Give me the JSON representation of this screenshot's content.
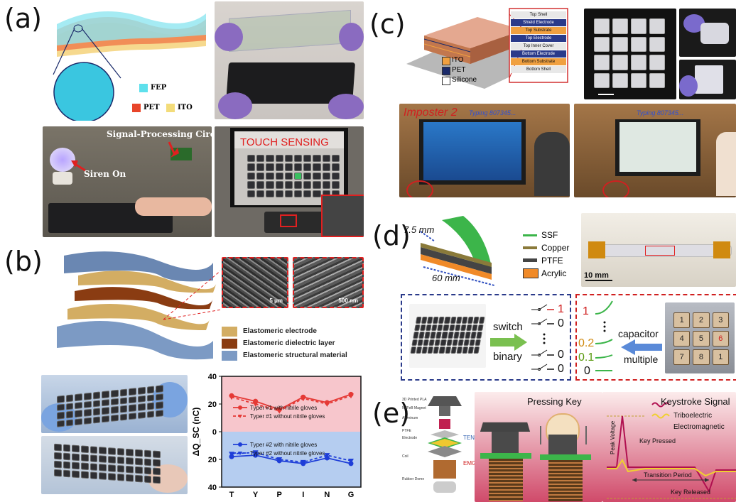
{
  "labels": {
    "a": "(a)",
    "b": "(b)",
    "c": "(c)",
    "d": "(d)",
    "e": "(e)"
  },
  "panel_a": {
    "legend": {
      "fep": "FEP",
      "pet": "PET",
      "ito": "ITO"
    },
    "signal_circuit": "Signal-Processing Circuit",
    "siren": "Siren On",
    "touch_sensing": "TOUCH SENSING"
  },
  "panel_b": {
    "scale1": "5 μm",
    "scale2": "500 nm",
    "legend": [
      "Elastomeric electrode",
      "Elastomeric dielectric layer",
      "Elastomeric structural material"
    ],
    "legend_colors": [
      "#d3ad63",
      "#8a3c12",
      "#7c9ac4"
    ],
    "chart_legend": [
      "Typer #1 with nitrile gloves",
      "Typer #1 without nitrile gloves",
      "Typer #2 with nitrile gloves",
      "Typer #2 without nitrile gloves"
    ]
  },
  "chart_data": {
    "type": "line",
    "categories": [
      "T",
      "Y",
      "P",
      "I",
      "N",
      "G"
    ],
    "ylabel": "ΔQ_SC (nC)",
    "yticks": [
      "40",
      "20",
      "0",
      "20",
      "40"
    ],
    "series": [
      {
        "name": "Typer #1 with nitrile gloves",
        "values": [
          26,
          22,
          16,
          25,
          21,
          27
        ],
        "color": "#e53935",
        "dashed": false
      },
      {
        "name": "Typer #1 without nitrile gloves",
        "values": [
          25,
          20,
          15,
          24,
          20,
          26
        ],
        "color": "#e53935",
        "dashed": true
      },
      {
        "name": "Typer #2 with nitrile gloves",
        "values": [
          -18,
          -17,
          -21,
          -23,
          -19,
          -23
        ],
        "color": "#1e3ed8",
        "dashed": false
      },
      {
        "name": "Typer #2 without nitrile gloves",
        "values": [
          -16,
          -15,
          -20,
          -22,
          -17,
          -21
        ],
        "color": "#1e3ed8",
        "dashed": true
      }
    ],
    "ylim": [
      -40,
      40
    ]
  },
  "panel_c": {
    "legend": [
      "ITO",
      "PET",
      "Silicone"
    ],
    "legend_colors": [
      "#f0a040",
      "#1a2a6a",
      "#ffffff"
    ],
    "layers": [
      "Top Shell",
      "Shield Electrode",
      "Top Substrate",
      "Top Electrode",
      "Top Inner Cover",
      "Bottom Electrode",
      "Bottom Substrate",
      "Bottom Shell"
    ],
    "imposter": "Imposter 2",
    "typing1": "Typing 807345...",
    "typing2": "Typing 807345..."
  },
  "panel_d": {
    "dim1": "7.5 mm",
    "dim2": "60 mm",
    "legend": [
      "SSF",
      "Copper",
      "PTFE",
      "Acrylic"
    ],
    "legend_colors": [
      "#3cb54a",
      "#8a7a3a",
      "#444444",
      "#f08a28"
    ],
    "scale": "10 mm",
    "switch": "switch",
    "binary": "binary",
    "capacitor": "capacitor",
    "multiple": "multiple",
    "out_zero": "0",
    "out_one": "1",
    "levels": [
      "1",
      "0.2",
      "0.1",
      "0"
    ],
    "grid_numbers": [
      "1",
      "2",
      "3",
      "4",
      "5",
      "6",
      "7",
      "8",
      "1"
    ]
  },
  "panel_e": {
    "layers": [
      "3D Printed PLA",
      "NdFeB Magnet",
      "Aluminum",
      "PTFE",
      "Electrode",
      "Coil",
      "Rubber Dome"
    ],
    "teng": "TENG",
    "emg": "EMG",
    "pressing": "Pressing Key",
    "keystroke": "Keystroke Signal",
    "legend": [
      "Triboelectric",
      "Electromagnetic"
    ],
    "key_pressed": "Key Pressed",
    "peak_voltage": "Peak Voltage",
    "transition": "Transition Period",
    "key_released": "Key Released"
  }
}
